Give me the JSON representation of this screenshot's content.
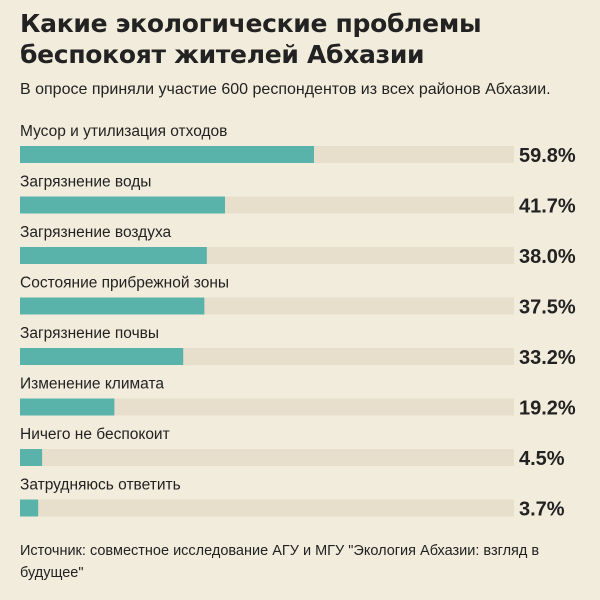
{
  "title": "Какие экологические проблемы беспокоят жителей Абхазии",
  "subtitle": "В опросе приняли участие 600 респондентов из всех районов Абхазии.",
  "source": "Источник: совместное исследование АГУ и МГУ \"Экология Абхазии: взгляд в будущее\"",
  "colors": {
    "bar": "#5ab3ab",
    "track": "#e7dfcc",
    "background": "#f2ecdc",
    "text": "#222222"
  },
  "chart_data": {
    "type": "bar",
    "orientation": "horizontal",
    "categories": [
      "Мусор и утилизация отходов",
      "Загрязнение воды",
      "Загрязнение воздуха",
      "Состояние прибрежной зоны",
      "Загрязнение почвы",
      "Изменение климата",
      "Ничего не беспокоит",
      "Затрудняюсь ответить"
    ],
    "values": [
      59.8,
      41.7,
      38.0,
      37.5,
      33.2,
      19.2,
      4.5,
      3.7
    ],
    "labels": [
      "59.8%",
      "41.7%",
      "38.0%",
      "37.5%",
      "33.2%",
      "19.2%",
      "4.5%",
      "3.7%"
    ],
    "xlim": [
      0,
      100
    ],
    "unit": "%"
  }
}
